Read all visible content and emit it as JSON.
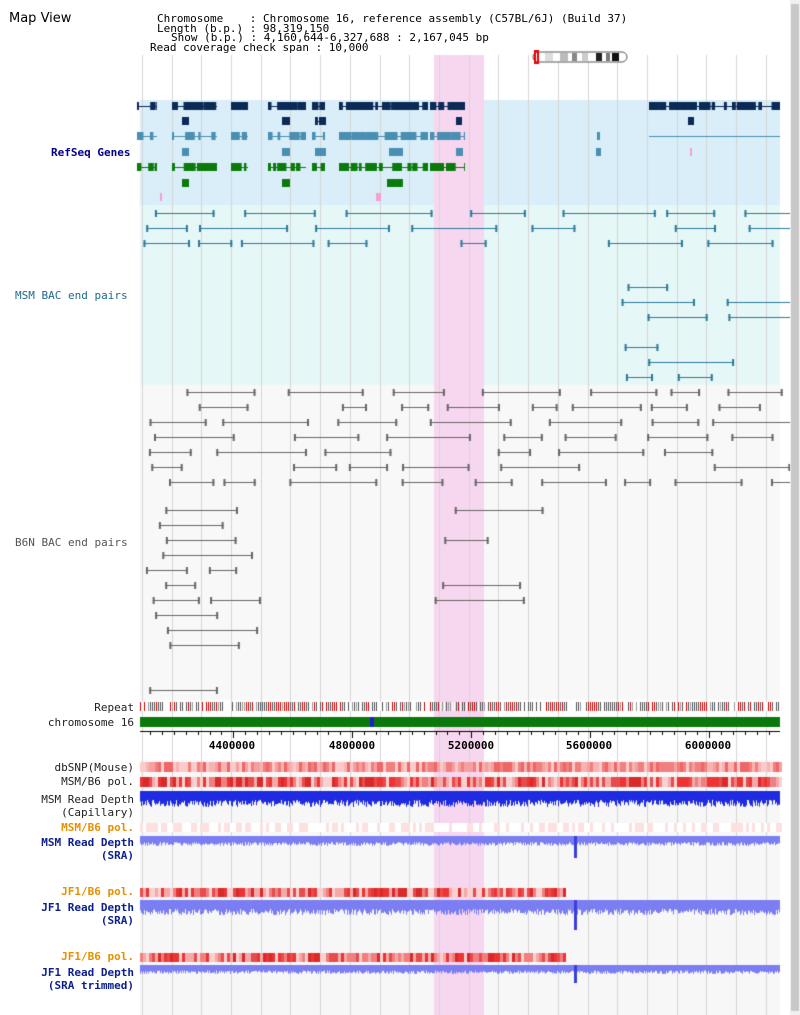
{
  "header": {
    "view_title": "Map View",
    "chromosome_line": "Chromosome    : Chromosome 16, reference assembly (C57BL/6J) (Build 37)",
    "length_line": "Length (b.p.) : 98,319,150",
    "show_line": "Show (b.p.) : 4,160,644-6,327,688 : 2,167,045 bp",
    "coverage_line": "Read coverage check span : 10,000"
  },
  "tracks": {
    "refseq": "RefSeq Genes",
    "msm_bac": "MSM BAC end pairs",
    "b6n_bac": "B6N BAC end pairs",
    "repeat": "Repeat",
    "chromosome": "chromosome 16",
    "dbsnp": "dbSNP(Mouse)",
    "msm_b6_pol": "MSM/B6 pol.",
    "msm_read_depth_cap_1": "MSM Read Depth",
    "msm_read_depth_cap_2": "(Capillary)",
    "msm_b6_pol_sra": "MSM/B6 pol.",
    "msm_read_depth_sra_1": "MSM Read Depth",
    "msm_read_depth_sra_2": "(SRA)",
    "jf1_b6_pol_1": "JF1/B6 pol.",
    "jf1_read_depth_1a": "JF1 Read Depth",
    "jf1_read_depth_1b": "(SRA)",
    "jf1_b6_pol_2": "JF1/B6 pol.",
    "jf1_read_depth_2a": "JF1 Read Depth",
    "jf1_read_depth_2b": "(SRA trimmed)"
  },
  "axis": {
    "ticks": [
      "4400000",
      "4800000",
      "5200000",
      "5600000",
      "6000000"
    ]
  },
  "colors": {
    "highlight": "#f7d6ef",
    "refseq_bg": "#d9eef8",
    "msm_bg": "#e6f7f7",
    "navy": "#0b2a55",
    "steel": "#4a8fb2",
    "green": "#0b7a0b",
    "teal_line": "#2a7a9a",
    "gray_line": "#666666",
    "chrom_green": "#0a780a",
    "depth_blue": "#1f2be0",
    "depth_light": "#7b7ef2"
  }
}
